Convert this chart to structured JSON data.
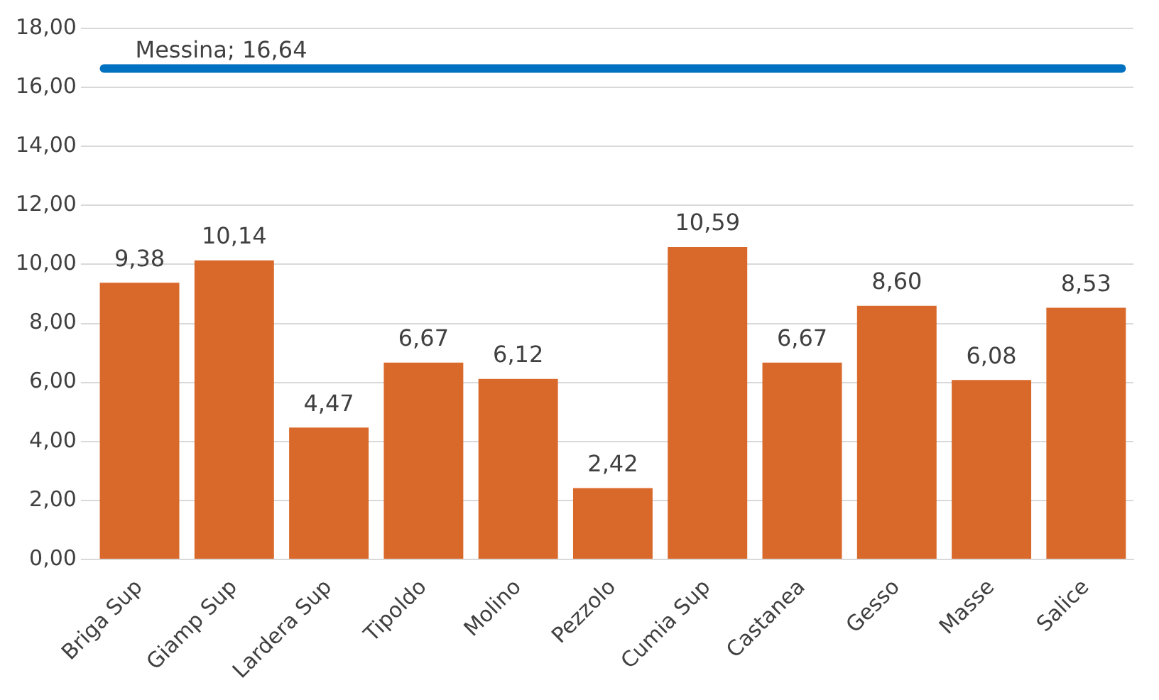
{
  "chart_data": {
    "type": "bar",
    "categories": [
      "Briga Sup",
      "Giamp Sup",
      "Lardera Sup",
      "Tipoldo",
      "Molino",
      "Pezzolo",
      "Cumia Sup",
      "Castanea",
      "Gesso",
      "Masse",
      "Salice"
    ],
    "values": [
      9.38,
      10.14,
      4.47,
      6.67,
      6.12,
      2.42,
      10.59,
      6.67,
      8.6,
      6.08,
      8.53
    ],
    "value_labels": [
      "9,38",
      "10,14",
      "4,47",
      "6,67",
      "6,12",
      "2,42",
      "10,59",
      "6,67",
      "8,60",
      "6,08",
      "8,53"
    ],
    "color": "#d9692b",
    "ylim": [
      0,
      18
    ],
    "yticks": [
      {
        "value": 0,
        "label": "0,00"
      },
      {
        "value": 2,
        "label": "2,00"
      },
      {
        "value": 4,
        "label": "4,00"
      },
      {
        "value": 6,
        "label": "6,00"
      },
      {
        "value": 8,
        "label": "8,00"
      },
      {
        "value": 10,
        "label": "10,00"
      },
      {
        "value": 12,
        "label": "12,00"
      },
      {
        "value": 14,
        "label": "14,00"
      },
      {
        "value": 16,
        "label": "16,00"
      },
      {
        "value": 18,
        "label": "18,00"
      }
    ],
    "grid": "y",
    "ref_lines": [
      {
        "axis": "y",
        "value": 16.64,
        "label": "Messina; 16,64",
        "color": "#0070c0"
      }
    ]
  }
}
